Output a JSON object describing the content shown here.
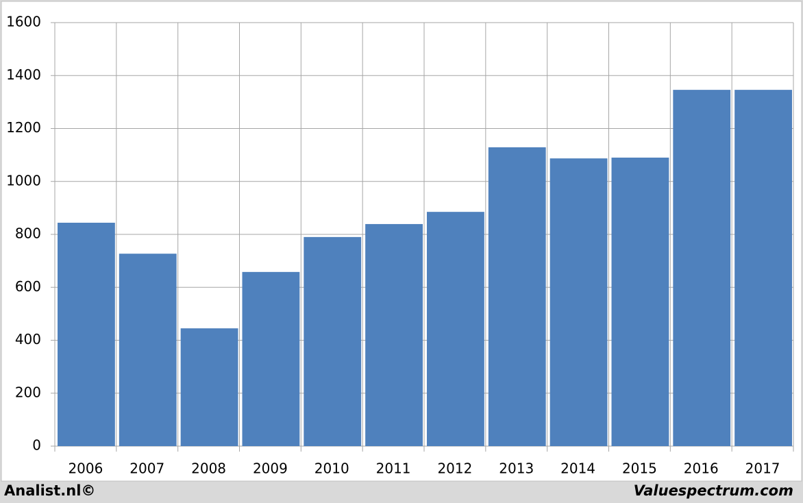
{
  "chart_data": {
    "type": "bar",
    "categories": [
      "2006",
      "2007",
      "2008",
      "2009",
      "2010",
      "2011",
      "2012",
      "2013",
      "2014",
      "2015",
      "2016",
      "2017"
    ],
    "values": [
      844,
      727,
      445,
      658,
      790,
      839,
      885,
      1129,
      1087,
      1090,
      1346,
      1346
    ],
    "color": "#4f81bd",
    "ylim": [
      0,
      1600
    ],
    "yticks": [
      0,
      200,
      400,
      600,
      800,
      1000,
      1200,
      1400,
      1600
    ],
    "grid": true,
    "source": "Analist.nl©",
    "credit": "Valuespectrum.com"
  }
}
